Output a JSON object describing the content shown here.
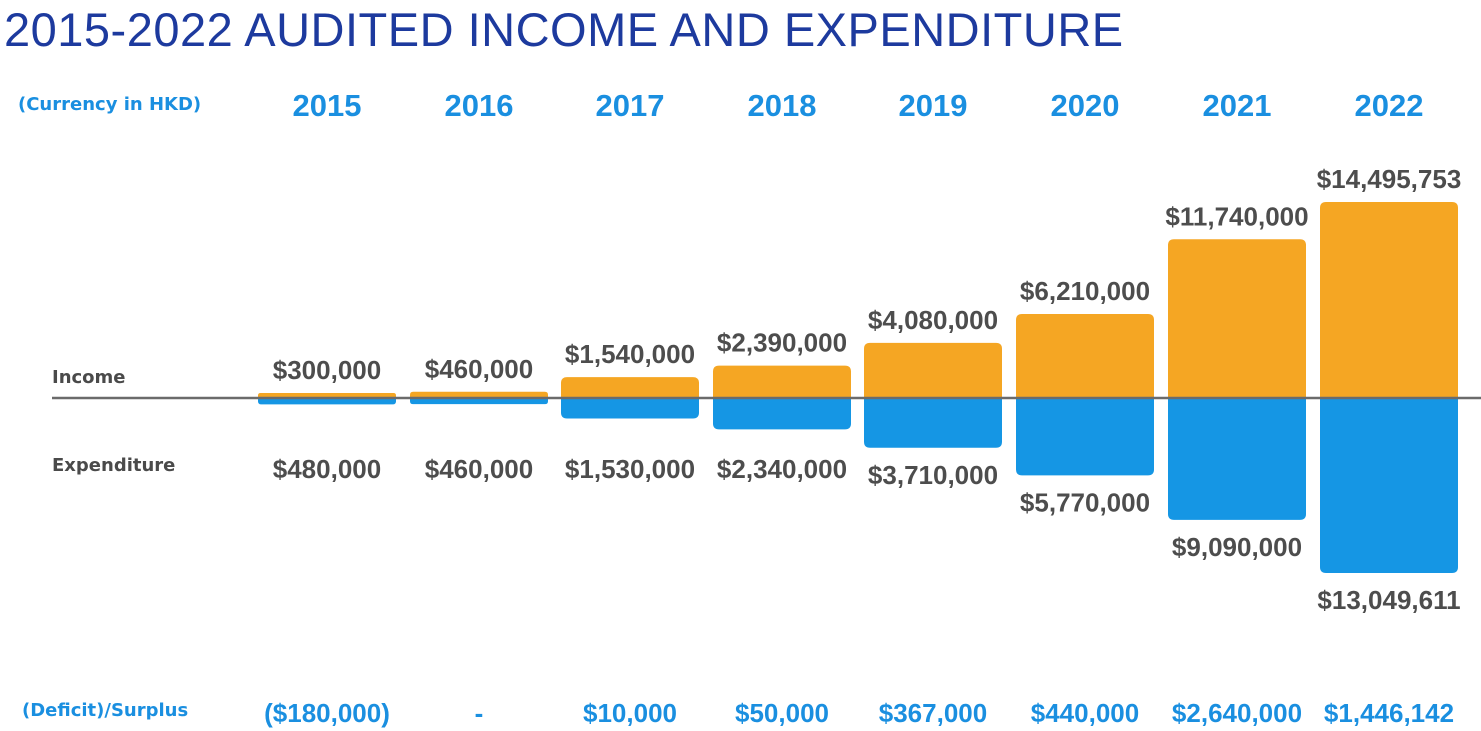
{
  "title": "2015-2022 AUDITED INCOME AND EXPENDITURE",
  "labels": {
    "currency": "(Currency in HKD)",
    "income": "Income",
    "expenditure": "Expenditure",
    "surplus": "(Deficit)/Surplus"
  },
  "colors": {
    "title": "#1d3a9e",
    "year_labels": "#1a8fe0",
    "income": "#f5a623",
    "expenditure": "#1596e4",
    "value_text": "#4d4d4d",
    "baseline": "#6b6b6b",
    "surplus_text": "#1a8fe0"
  },
  "chart_data": {
    "type": "bar",
    "categories": [
      "2015",
      "2016",
      "2017",
      "2018",
      "2019",
      "2020",
      "2021",
      "2022"
    ],
    "series": [
      {
        "name": "Income",
        "values": [
          300000,
          460000,
          1540000,
          2390000,
          4080000,
          6210000,
          11740000,
          14495753
        ]
      },
      {
        "name": "Expenditure",
        "values": [
          480000,
          460000,
          1530000,
          2340000,
          3710000,
          5770000,
          9090000,
          13049611
        ]
      }
    ],
    "income_labels": [
      "$300,000",
      "$460,000",
      "$1,540,000",
      "$2,390,000",
      "$4,080,000",
      "$6,210,000",
      "$11,740,000",
      "$14,495,753"
    ],
    "expenditure_labels": [
      "$480,000",
      "$460,000",
      "$1,530,000",
      "$2,340,000",
      "$3,710,000",
      "$5,770,000",
      "$9,090,000",
      "$13,049,611"
    ],
    "surplus_labels": [
      "($180,000)",
      "-",
      "$10,000",
      "$50,000",
      "$367,000",
      "$440,000",
      "$2,640,000",
      "$1,446,142"
    ],
    "surplus_values": [
      -180000,
      0,
      10000,
      50000,
      367000,
      440000,
      2640000,
      1446142
    ]
  }
}
